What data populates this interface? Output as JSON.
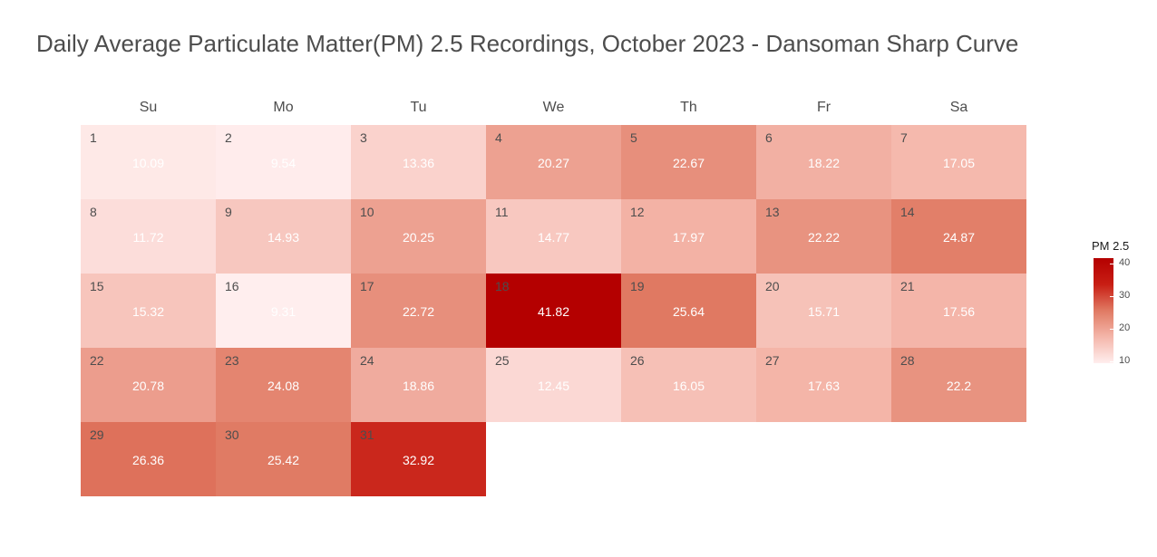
{
  "chart_data": {
    "type": "heatmap",
    "title": "Daily Average Particulate Matter(PM) 2.5 Recordings, October 2023 - Dansoman Sharp Curve",
    "weekdays": [
      "Su",
      "Mo",
      "Tu",
      "We",
      "Th",
      "Fr",
      "Sa"
    ],
    "first_weekday_index": 0,
    "days": [
      1,
      2,
      3,
      4,
      5,
      6,
      7,
      8,
      9,
      10,
      11,
      12,
      13,
      14,
      15,
      16,
      17,
      18,
      19,
      20,
      21,
      22,
      23,
      24,
      25,
      26,
      27,
      28,
      29,
      30,
      31
    ],
    "values": [
      10.09,
      9.54,
      13.36,
      20.27,
      22.67,
      18.22,
      17.05,
      11.72,
      14.93,
      20.25,
      14.77,
      17.97,
      22.22,
      24.87,
      15.32,
      9.31,
      22.72,
      41.82,
      25.64,
      15.71,
      17.56,
      20.78,
      24.08,
      18.86,
      12.45,
      16.05,
      17.63,
      22.2,
      26.36,
      25.42,
      32.92
    ],
    "value_labels": [
      "10.09",
      "9.54",
      "13.36",
      "20.27",
      "22.67",
      "18.22",
      "17.05",
      "11.72",
      "14.93",
      "20.25",
      "14.77",
      "17.97",
      "22.22",
      "24.87",
      "15.32",
      "9.31",
      "22.72",
      "41.82",
      "25.64",
      "15.71",
      "17.56",
      "20.78",
      "24.08",
      "18.86",
      "12.45",
      "16.05",
      "17.63",
      "22.2",
      "26.36",
      "25.42",
      "32.92"
    ],
    "legend": {
      "title": "PM 2.5",
      "ticks": [
        10,
        20,
        30,
        40
      ],
      "tick_labels": [
        "10",
        "20",
        "30",
        "40"
      ],
      "range": [
        9.31,
        41.82
      ],
      "placement": "right"
    },
    "colors": {
      "low": "#ffeeee",
      "high": "#b40000"
    }
  }
}
